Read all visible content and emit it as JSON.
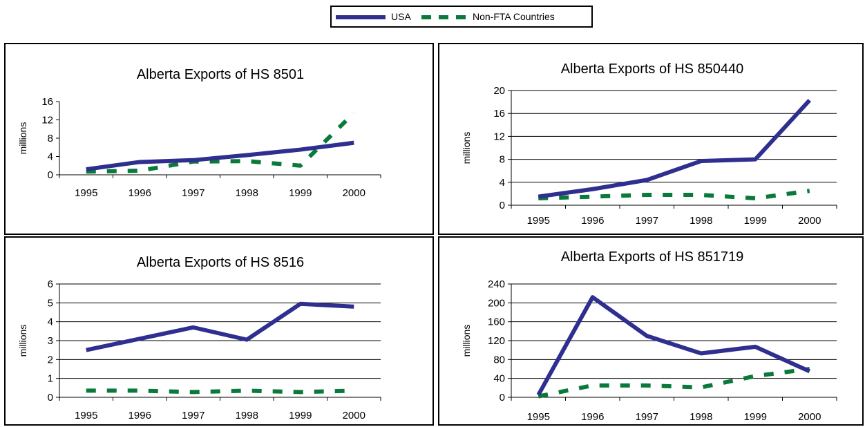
{
  "colors": {
    "usa": "#2e2f8f",
    "non_fta": "#0a7a3a",
    "grid": "#000000"
  },
  "legend": [
    {
      "name": "USA",
      "style": "solid",
      "color": "#2e2f8f"
    },
    {
      "name": "Non-FTA Countries",
      "style": "dashed",
      "color": "#0a7a3a"
    }
  ],
  "chart_data": [
    {
      "type": "line",
      "title": "Alberta Exports of HS 8501",
      "xlabel": "",
      "ylabel": "millions",
      "categories": [
        "1995",
        "1996",
        "1997",
        "1998",
        "1999",
        "2000"
      ],
      "ylim": [
        0,
        16
      ],
      "yticks": [
        0,
        4,
        8,
        12,
        16
      ],
      "grid": false,
      "series": [
        {
          "name": "USA",
          "values": [
            1.2,
            2.8,
            3.2,
            4.3,
            5.5,
            7
          ]
        },
        {
          "name": "Non-FTA Countries",
          "values": [
            0.7,
            0.9,
            2.9,
            3,
            2,
            13.5
          ]
        }
      ]
    },
    {
      "type": "line",
      "title": "Alberta Exports of HS 850440",
      "xlabel": "",
      "ylabel": "millions",
      "categories": [
        "1995",
        "1996",
        "1997",
        "1998",
        "1999",
        "2000"
      ],
      "ylim": [
        0,
        20
      ],
      "yticks": [
        0,
        4,
        8,
        12,
        16,
        20
      ],
      "grid": true,
      "series": [
        {
          "name": "USA",
          "values": [
            1.5,
            2.8,
            4.4,
            7.7,
            8,
            18.3
          ]
        },
        {
          "name": "Non-FTA Countries",
          "values": [
            1.2,
            1.5,
            1.8,
            1.8,
            1.2,
            2.5
          ]
        }
      ]
    },
    {
      "type": "line",
      "title": "Alberta Exports of HS 8516",
      "xlabel": "",
      "ylabel": "millions",
      "categories": [
        "1995",
        "1996",
        "1997",
        "1998",
        "1999",
        "2000"
      ],
      "ylim": [
        0,
        6
      ],
      "yticks": [
        0,
        1,
        2,
        3,
        4,
        5,
        6
      ],
      "grid": true,
      "series": [
        {
          "name": "USA",
          "values": [
            2.5,
            3.1,
            3.7,
            3.05,
            4.95,
            4.8
          ]
        },
        {
          "name": "Non-FTA Countries",
          "values": [
            0.35,
            0.35,
            0.28,
            0.35,
            0.28,
            0.35
          ]
        }
      ]
    },
    {
      "type": "line",
      "title": "Alberta Exports of HS 851719",
      "xlabel": "",
      "ylabel": "millions",
      "categories": [
        "1995",
        "1996",
        "1997",
        "1998",
        "1999",
        "2000"
      ],
      "ylim": [
        0,
        240
      ],
      "yticks": [
        0,
        40,
        80,
        120,
        160,
        200,
        240
      ],
      "grid": true,
      "series": [
        {
          "name": "USA",
          "values": [
            5,
            212,
            130,
            93,
            107,
            55
          ]
        },
        {
          "name": "Non-FTA Countries",
          "values": [
            2,
            25,
            25,
            21,
            45,
            60
          ]
        }
      ]
    }
  ]
}
